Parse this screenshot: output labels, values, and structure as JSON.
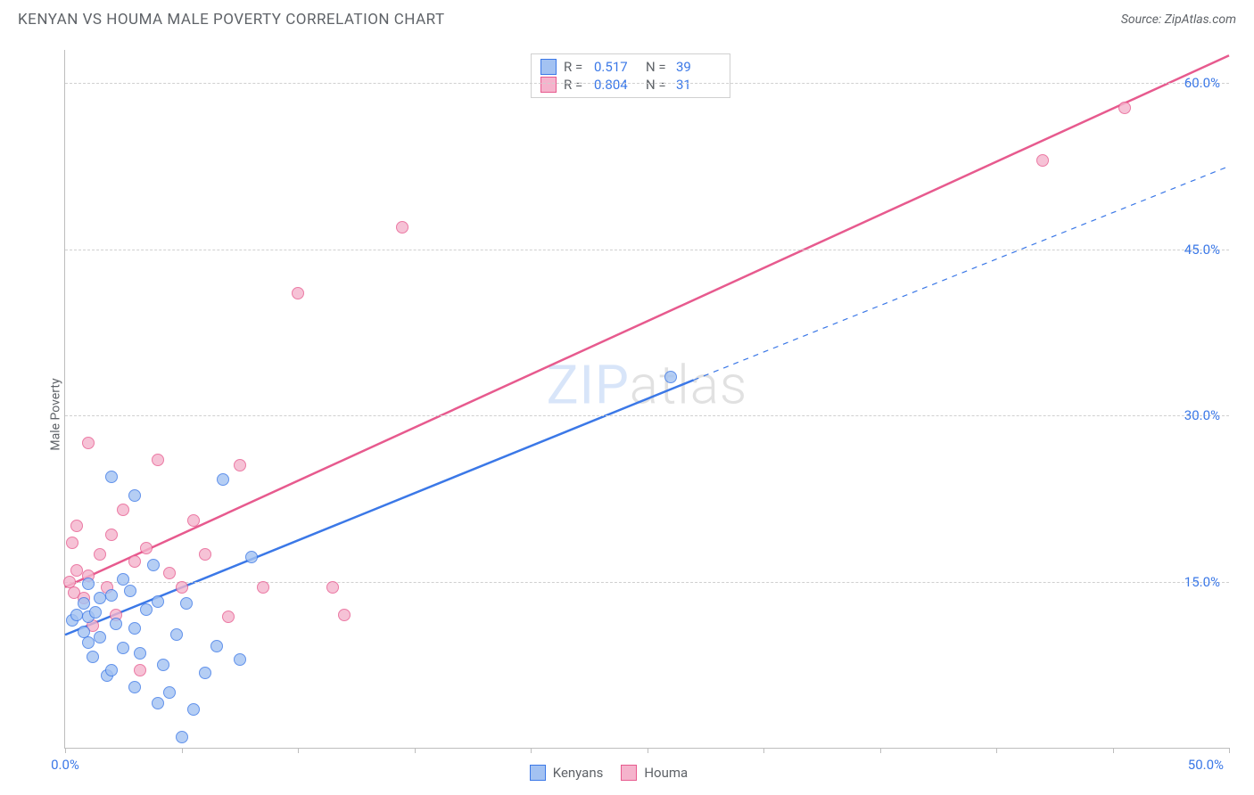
{
  "header": {
    "title": "KENYAN VS HOUMA MALE POVERTY CORRELATION CHART",
    "source_label": "Source: ",
    "source_name": "ZipAtlas.com"
  },
  "ylabel": "Male Poverty",
  "watermark": {
    "part1": "ZIP",
    "part2": "atlas"
  },
  "chart": {
    "type": "scatter-with-regression",
    "background_color": "#ffffff",
    "grid_color": "#d0d0d0",
    "axis_color": "#bdbdbd",
    "tick_label_color": "#3b78e7",
    "text_color": "#5f6368",
    "xlim": [
      0,
      50
    ],
    "ylim": [
      0,
      63
    ],
    "x_tick_minor_positions": [
      0,
      5,
      10,
      15,
      20,
      25,
      30,
      35,
      40,
      45,
      50
    ],
    "x_tick_labels": [
      {
        "pos": 0,
        "label": "0.0%"
      },
      {
        "pos": 50,
        "label": "50.0%"
      }
    ],
    "y_gridlines": [
      15,
      30,
      45,
      60
    ],
    "y_tick_labels": [
      {
        "pos": 15,
        "label": "15.0%"
      },
      {
        "pos": 30,
        "label": "30.0%"
      },
      {
        "pos": 45,
        "label": "45.0%"
      },
      {
        "pos": 60,
        "label": "60.0%"
      }
    ],
    "marker_radius": 7,
    "marker_fill_opacity": 0.45,
    "series": {
      "kenyans": {
        "label": "Kenyans",
        "stroke_color": "#3b78e7",
        "fill_color": "#a3c2f2",
        "R": 0.517,
        "N": 39,
        "regression_solid": {
          "x1": 0,
          "y1": 10.2,
          "x2": 27,
          "y2": 33.2
        },
        "regression_dashed": {
          "x1": 27,
          "y1": 33.2,
          "x2": 50,
          "y2": 52.5
        },
        "line_width": 2.5,
        "points": [
          [
            0.3,
            11.5
          ],
          [
            0.5,
            12.0
          ],
          [
            0.8,
            10.5
          ],
          [
            0.8,
            13.0
          ],
          [
            1.0,
            9.5
          ],
          [
            1.0,
            11.8
          ],
          [
            1.0,
            14.8
          ],
          [
            1.2,
            8.2
          ],
          [
            1.3,
            12.2
          ],
          [
            1.5,
            13.5
          ],
          [
            1.5,
            10.0
          ],
          [
            1.8,
            6.5
          ],
          [
            2.0,
            7.0
          ],
          [
            2.0,
            13.8
          ],
          [
            2.0,
            24.5
          ],
          [
            2.2,
            11.2
          ],
          [
            2.5,
            9.0
          ],
          [
            2.5,
            15.2
          ],
          [
            2.8,
            14.2
          ],
          [
            3.0,
            5.5
          ],
          [
            3.0,
            10.8
          ],
          [
            3.0,
            22.8
          ],
          [
            3.2,
            8.5
          ],
          [
            3.5,
            12.5
          ],
          [
            3.8,
            16.5
          ],
          [
            4.0,
            4.0
          ],
          [
            4.0,
            13.2
          ],
          [
            4.2,
            7.5
          ],
          [
            4.5,
            5.0
          ],
          [
            4.8,
            10.2
          ],
          [
            5.0,
            1.0
          ],
          [
            5.2,
            13.0
          ],
          [
            5.5,
            3.5
          ],
          [
            6.0,
            6.8
          ],
          [
            6.5,
            9.2
          ],
          [
            6.8,
            24.2
          ],
          [
            7.5,
            8.0
          ],
          [
            8.0,
            17.2
          ],
          [
            26.0,
            33.5
          ]
        ]
      },
      "houma": {
        "label": "Houma",
        "stroke_color": "#e75a8e",
        "fill_color": "#f5b3cc",
        "R": 0.804,
        "N": 31,
        "regression_solid": {
          "x1": 0,
          "y1": 14.5,
          "x2": 50,
          "y2": 62.5
        },
        "regression_dashed": null,
        "line_width": 2.5,
        "points": [
          [
            0.2,
            15.0
          ],
          [
            0.3,
            18.5
          ],
          [
            0.4,
            14.0
          ],
          [
            0.5,
            16.0
          ],
          [
            0.5,
            20.0
          ],
          [
            0.8,
            13.5
          ],
          [
            1.0,
            27.5
          ],
          [
            1.0,
            15.5
          ],
          [
            1.2,
            11.0
          ],
          [
            1.5,
            17.5
          ],
          [
            1.8,
            14.5
          ],
          [
            2.0,
            19.2
          ],
          [
            2.2,
            12.0
          ],
          [
            2.5,
            21.5
          ],
          [
            3.0,
            16.8
          ],
          [
            3.2,
            7.0
          ],
          [
            3.5,
            18.0
          ],
          [
            4.0,
            26.0
          ],
          [
            4.5,
            15.8
          ],
          [
            5.0,
            14.5
          ],
          [
            5.5,
            20.5
          ],
          [
            6.0,
            17.5
          ],
          [
            7.0,
            11.8
          ],
          [
            7.5,
            25.5
          ],
          [
            8.5,
            14.5
          ],
          [
            10.0,
            41.0
          ],
          [
            11.5,
            14.5
          ],
          [
            12.0,
            12.0
          ],
          [
            14.5,
            47.0
          ],
          [
            42.0,
            53.0
          ],
          [
            45.5,
            57.8
          ]
        ]
      }
    },
    "legend_top_labels": {
      "R": "R  =",
      "N": "N  ="
    }
  },
  "legend_bottom": [
    {
      "key": "kenyans"
    },
    {
      "key": "houma"
    }
  ]
}
